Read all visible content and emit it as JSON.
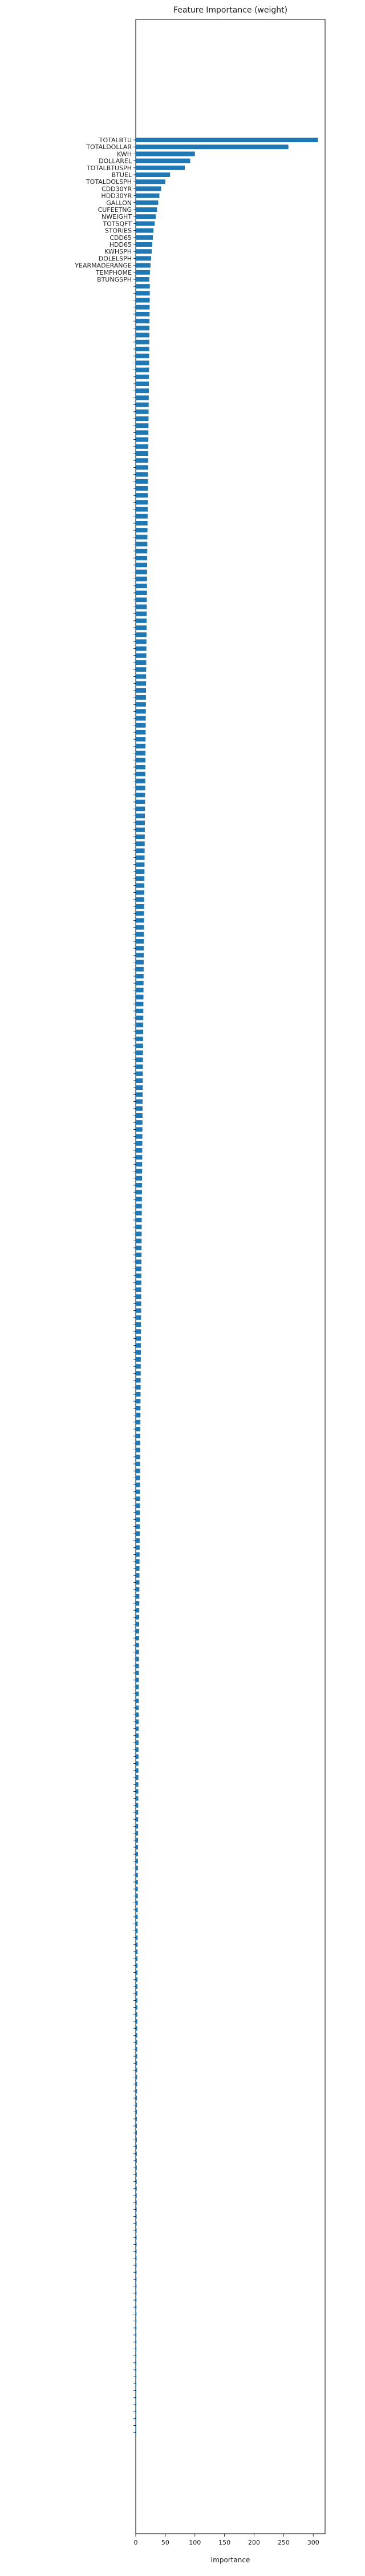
{
  "chart_data": {
    "type": "bar",
    "orientation": "horizontal",
    "title": "Feature Importance (weight)",
    "xlabel": "Importance",
    "ylabel": "",
    "xlim": [
      0,
      320
    ],
    "xticks": [
      0,
      50,
      100,
      150,
      200,
      250,
      300
    ],
    "grid": false,
    "legend": "none",
    "color": "#1f77b4",
    "categories": [
      "TOTALBTU",
      "TOTALDOLLAR",
      "KWH",
      "DOLLAREL",
      "TOTALBTUSPH",
      "BTUEL",
      "TOTALDOLSPH",
      "CDD30YR",
      "HDD30YR",
      "GALLON",
      "CUFEETNG",
      "NWEIGHT",
      "TOTSQFT",
      "STORIES",
      "CDD65",
      "HDD65",
      "KWHSPH",
      "DOLELSPH",
      "YEARMADERANGE",
      "TEMPHOME",
      "BTUNGSPH"
    ],
    "values": [
      308,
      258,
      100,
      92,
      83,
      58,
      50,
      43,
      40,
      38,
      36,
      34,
      32,
      30,
      29,
      28,
      27,
      26,
      25,
      24,
      23
    ],
    "unlabeled_bar_count": 309
  }
}
